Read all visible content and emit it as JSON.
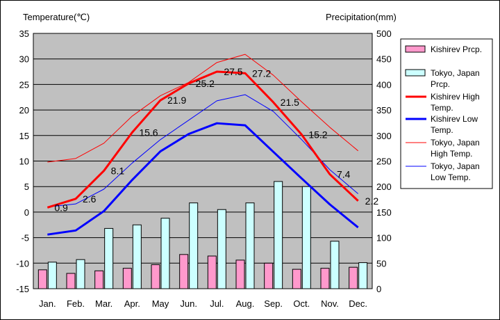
{
  "chart_data": {
    "type": "bar",
    "categories": [
      "Jan.",
      "Feb.",
      "Mar.",
      "Apr.",
      "May",
      "Jun.",
      "Jul.",
      "Aug.",
      "Sep.",
      "Oct.",
      "Nov.",
      "Dec."
    ],
    "y_left_label": "Temperature(℃)",
    "y_right_label": "Precipitation(mm)",
    "y_left_range": [
      -15,
      35
    ],
    "y_left_ticks": [
      "35",
      "30",
      "25",
      "20",
      "15",
      "10",
      "5",
      "0",
      "-5",
      "-10",
      "-15"
    ],
    "y_right_range": [
      0,
      500
    ],
    "y_right_ticks": [
      "500",
      "450",
      "400",
      "350",
      "300",
      "250",
      "200",
      "150",
      "100",
      "50",
      "0"
    ],
    "bar_series": [
      {
        "name": "Kishirev Prcp.",
        "color": "#ff99cc",
        "values": [
          37,
          30,
          35,
          40,
          47,
          67,
          64,
          56,
          50,
          38,
          40,
          42
        ]
      },
      {
        "name": "Tokyo, Japan Prcp.",
        "color": "#ccffff",
        "values": [
          52,
          57,
          118,
          125,
          138,
          168,
          155,
          168,
          210,
          200,
          93,
          51
        ]
      }
    ],
    "line_series": [
      {
        "name": "Kishirev High Temp.",
        "color": "#ff0000",
        "width": 3,
        "values": [
          0.9,
          2.6,
          8.1,
          15.6,
          21.9,
          25.2,
          27.5,
          27.2,
          21.5,
          15.2,
          7.4,
          2.2
        ]
      },
      {
        "name": "Kishirev Low Temp.",
        "color": "#0000ff",
        "width": 3,
        "values": [
          -4.4,
          -3.6,
          0.2,
          6.3,
          11.9,
          15.3,
          17.4,
          17.0,
          11.8,
          6.6,
          1.5,
          -3.0
        ]
      },
      {
        "name": "Tokyo, Japan High Temp.",
        "color": "#ff0000",
        "width": 1,
        "values": [
          9.8,
          10.5,
          13.5,
          18.8,
          22.8,
          25.4,
          29.3,
          30.9,
          26.8,
          21.6,
          16.6,
          12.0
        ]
      },
      {
        "name": "Tokyo, Japan Low Temp.",
        "color": "#0000ff",
        "width": 1,
        "values": [
          1.0,
          1.6,
          4.5,
          9.6,
          14.2,
          18.0,
          21.8,
          23.0,
          19.7,
          14.2,
          8.3,
          3.6
        ]
      }
    ],
    "data_labels": [
      "0.9",
      "2.6",
      "8.1",
      "15.6",
      "21.9",
      "25.2",
      "27.5",
      "27.2",
      "21.5",
      "15.2",
      "7.4",
      "2.2"
    ],
    "legend": [
      {
        "label": "Kishirev Prcp.",
        "kind": "bar",
        "color": "#ff99cc"
      },
      {
        "label": "Tokyo, Japan Prcp.",
        "kind": "bar",
        "color": "#ccffff"
      },
      {
        "label": "Kishirev High Temp.",
        "kind": "line",
        "color": "#ff0000",
        "width": 3
      },
      {
        "label": "Kishirev Low Temp.",
        "kind": "line",
        "color": "#0000ff",
        "width": 3
      },
      {
        "label": "Tokyo, Japan High Temp.",
        "kind": "line",
        "color": "#ff0000",
        "width": 1
      },
      {
        "label": "Tokyo, Japan Low Temp.",
        "kind": "line",
        "color": "#0000ff",
        "width": 1
      }
    ],
    "plot_background": "#c0c0c0",
    "grid": "horizontal",
    "legend_position": "right"
  }
}
